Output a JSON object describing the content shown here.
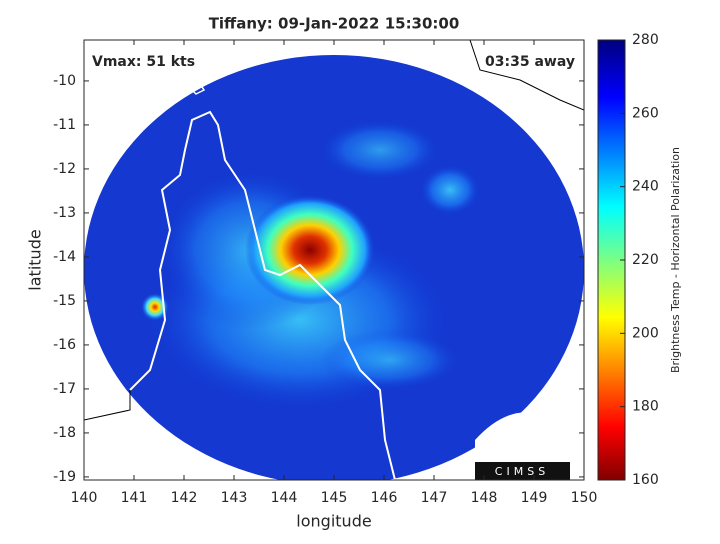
{
  "chart_data": {
    "type": "map",
    "title": "Tiffany: 09-Jan-2022 15:30:00",
    "annotations": [
      "Vmax: 51 kts",
      "03:35 away"
    ],
    "xlabel": "longitude",
    "ylabel": "latitude",
    "xlim": [
      140,
      150
    ],
    "xticks": [
      140,
      141,
      142,
      143,
      144,
      145,
      146,
      147,
      148,
      149,
      150
    ],
    "ylim": [
      -19.07,
      -9.07
    ],
    "yticks": [
      -19,
      -18,
      -17,
      -16,
      -15,
      -14,
      -13,
      -12,
      -11,
      -10
    ],
    "colorbar": {
      "label": "Brightness Temp - Horizontal Polarization",
      "clim": [
        160,
        280
      ],
      "ticks": [
        160,
        180,
        200,
        220,
        240,
        260,
        280
      ]
    },
    "logo": "CIMSS"
  }
}
